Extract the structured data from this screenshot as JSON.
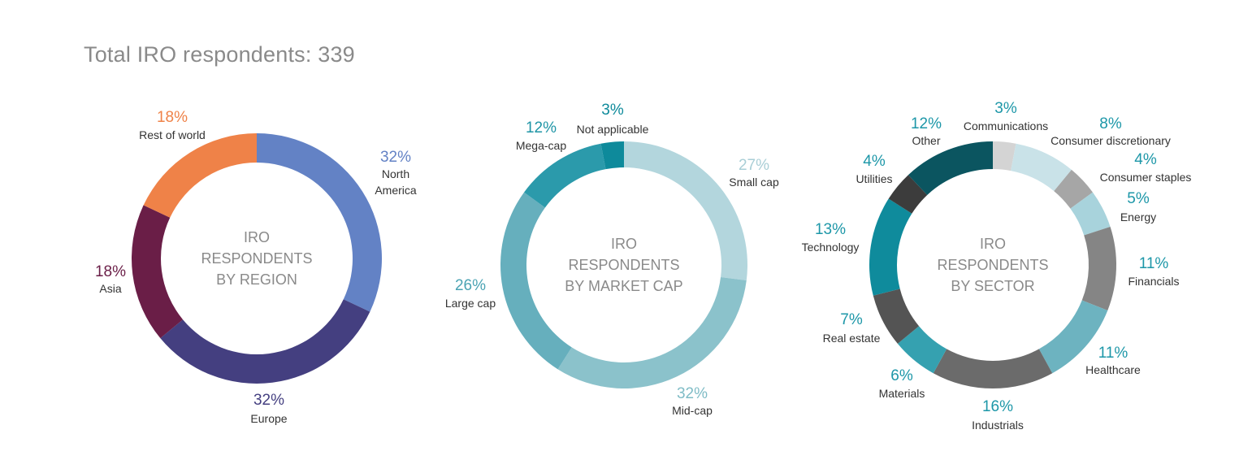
{
  "header": {
    "title": "Total IRO respondents: 339"
  },
  "chart_data": [
    {
      "type": "pie",
      "center_label": [
        "IRO",
        "RESPONDENTS",
        "BY REGION"
      ],
      "slices": [
        {
          "label": "North America",
          "label_lines": [
            "North",
            "America"
          ],
          "pct_text": "32%",
          "value": 32,
          "color": "#6382c5",
          "text_color": "#6382c5"
        },
        {
          "label": "Europe",
          "label_lines": [
            "Europe"
          ],
          "pct_text": "32%",
          "value": 32,
          "color": "#443f80",
          "text_color": "#443f80"
        },
        {
          "label": "Asia",
          "label_lines": [
            "Asia"
          ],
          "pct_text": "18%",
          "value": 18,
          "color": "#6a1e47",
          "text_color": "#6a1e47"
        },
        {
          "label": "Rest of world",
          "label_lines": [
            "Rest of world"
          ],
          "pct_text": "18%",
          "value": 18,
          "color": "#ef8248",
          "text_color": "#ef8248"
        }
      ]
    },
    {
      "type": "pie",
      "center_label": [
        "IRO",
        "RESPONDENTS",
        "BY MARKET CAP"
      ],
      "slices": [
        {
          "label": "Small cap",
          "label_lines": [
            "Small cap"
          ],
          "pct_text": "27%",
          "value": 27,
          "color": "#b3d6dd",
          "text_color": "#a9ced6"
        },
        {
          "label": "Mid-cap",
          "label_lines": [
            "Mid-cap"
          ],
          "pct_text": "32%",
          "value": 32,
          "color": "#8bc2cb",
          "text_color": "#7fbcc6"
        },
        {
          "label": "Large cap",
          "label_lines": [
            "Large cap"
          ],
          "pct_text": "26%",
          "value": 26,
          "color": "#66afbd",
          "text_color": "#4aa3b3"
        },
        {
          "label": "Mega-cap",
          "label_lines": [
            "Mega-cap"
          ],
          "pct_text": "12%",
          "value": 12,
          "color": "#2b9aab",
          "text_color": "#1f95a6"
        },
        {
          "label": "Not applicable",
          "label_lines": [
            "Not applicable"
          ],
          "pct_text": "3%",
          "value": 3,
          "color": "#0e8a9b",
          "text_color": "#0e8a9b"
        }
      ]
    },
    {
      "type": "pie",
      "center_label": [
        "IRO",
        "RESPONDENTS",
        "BY SECTOR"
      ],
      "slices": [
        {
          "label": "Communications",
          "label_lines": [
            "Communications"
          ],
          "pct_text": "3%",
          "value": 3,
          "color": "#d4d4d4",
          "text_color": "#1d97a8"
        },
        {
          "label": "Consumer discretionary",
          "label_lines": [
            "Consumer discretionary"
          ],
          "pct_text": "8%",
          "value": 8,
          "color": "#c9e2e8",
          "text_color": "#1d97a8"
        },
        {
          "label": "Consumer staples",
          "label_lines": [
            "Consumer staples"
          ],
          "pct_text": "4%",
          "value": 4,
          "color": "#a6a6a6",
          "text_color": "#1d97a8"
        },
        {
          "label": "Energy",
          "label_lines": [
            "Energy"
          ],
          "pct_text": "5%",
          "value": 5,
          "color": "#a8d3dc",
          "text_color": "#1d97a8"
        },
        {
          "label": "Financials",
          "label_lines": [
            "Financials"
          ],
          "pct_text": "11%",
          "value": 11,
          "color": "#858585",
          "text_color": "#1d97a8"
        },
        {
          "label": "Healthcare",
          "label_lines": [
            "Healthcare"
          ],
          "pct_text": "11%",
          "value": 11,
          "color": "#6db3c0",
          "text_color": "#1d97a8"
        },
        {
          "label": "Industrials",
          "label_lines": [
            "Industrials"
          ],
          "pct_text": "16%",
          "value": 16,
          "color": "#6b6b6b",
          "text_color": "#1d97a8"
        },
        {
          "label": "Materials",
          "label_lines": [
            "Materials"
          ],
          "pct_text": "6%",
          "value": 6,
          "color": "#35a1b0",
          "text_color": "#1d97a8"
        },
        {
          "label": "Real estate",
          "label_lines": [
            "Real estate"
          ],
          "pct_text": "7%",
          "value": 7,
          "color": "#545454",
          "text_color": "#1d97a8"
        },
        {
          "label": "Technology",
          "label_lines": [
            "Technology"
          ],
          "pct_text": "13%",
          "value": 13,
          "color": "#0f8b9c",
          "text_color": "#1d97a8"
        },
        {
          "label": "Utilities",
          "label_lines": [
            "Utilities"
          ],
          "pct_text": "4%",
          "value": 4,
          "color": "#3c3c3c",
          "text_color": "#1d97a8"
        },
        {
          "label": "Other",
          "label_lines": [
            "Other"
          ],
          "pct_text": "12%",
          "value": 12,
          "color": "#0b5560",
          "text_color": "#1d97a8"
        }
      ]
    }
  ]
}
